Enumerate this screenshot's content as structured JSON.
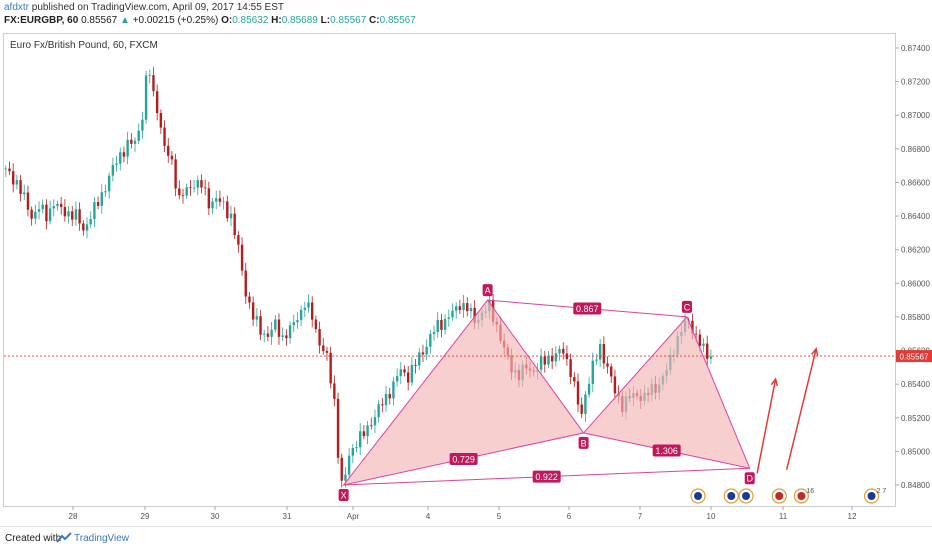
{
  "header": {
    "author": "afdxtr",
    "published": "published on TradingView.com, April 09, 2017 14:55 EST",
    "symbol": "FX:EURGBP, 60",
    "last": "0.85567",
    "change": "+0.00215 (+0.25%)",
    "o_label": "O:",
    "o_value": "0.85632",
    "h_label": "H:",
    "h_value": "0.85689",
    "l_label": "L:",
    "l_value": "0.85567",
    "c_label": "C:",
    "c_value": "0.85567"
  },
  "chart_title": "Euro Fx/British Pound, 60, FXCM",
  "footer": {
    "created": "Created with",
    "brand": "TradingView"
  },
  "colors": {
    "up": "#26a69a",
    "down": "#b71c1c",
    "pattern_fill": "#f4b6b6",
    "pattern_line": "#e040a0",
    "arrow": "#e53935",
    "price_line": "#e53935"
  },
  "chart_data": {
    "type": "candlestick",
    "title": "Euro Fx/British Pound, 60, FXCM",
    "current_price": 0.85567,
    "current_price_label": "0.85567",
    "y_ticks": [
      "0.87400",
      "0.87200",
      "0.87000",
      "0.86800",
      "0.86600",
      "0.86400",
      "0.86200",
      "0.86000",
      "0.85800",
      "0.85600",
      "0.85400",
      "0.85200",
      "0.85000",
      "0.84800"
    ],
    "ylim": [
      0.847,
      0.875
    ],
    "x_ticks": [
      "28",
      "29",
      "30",
      "31",
      "Apr",
      "4",
      "5",
      "6",
      "7",
      "10",
      "11",
      "12"
    ],
    "price_path": [
      [
        0,
        0.8668
      ],
      [
        2,
        0.8665
      ],
      [
        4,
        0.866
      ],
      [
        6,
        0.865
      ],
      [
        8,
        0.864
      ],
      [
        10,
        0.8645
      ],
      [
        12,
        0.864
      ],
      [
        14,
        0.8648
      ],
      [
        16,
        0.8643
      ],
      [
        18,
        0.8642
      ],
      [
        20,
        0.864
      ],
      [
        22,
        0.8632
      ],
      [
        24,
        0.864
      ],
      [
        26,
        0.8648
      ],
      [
        28,
        0.8658
      ],
      [
        30,
        0.8668
      ],
      [
        32,
        0.8677
      ],
      [
        34,
        0.8682
      ],
      [
        36,
        0.8684
      ],
      [
        38,
        0.87
      ],
      [
        39,
        0.872
      ],
      [
        40,
        0.8725
      ],
      [
        41,
        0.8712
      ],
      [
        42,
        0.8705
      ],
      [
        44,
        0.868
      ],
      [
        46,
        0.8672
      ],
      [
        48,
        0.865
      ],
      [
        50,
        0.8655
      ],
      [
        52,
        0.866
      ],
      [
        54,
        0.8658
      ],
      [
        56,
        0.8648
      ],
      [
        58,
        0.865
      ],
      [
        60,
        0.8646
      ],
      [
        62,
        0.864
      ],
      [
        64,
        0.862
      ],
      [
        66,
        0.8595
      ],
      [
        68,
        0.858
      ],
      [
        70,
        0.8572
      ],
      [
        72,
        0.8569
      ],
      [
        74,
        0.8575
      ],
      [
        76,
        0.8568
      ],
      [
        78,
        0.8572
      ],
      [
        80,
        0.858
      ],
      [
        82,
        0.8588
      ],
      [
        84,
        0.858
      ],
      [
        86,
        0.8565
      ],
      [
        88,
        0.8555
      ],
      [
        90,
        0.853
      ],
      [
        91,
        0.85
      ],
      [
        92,
        0.848
      ],
      [
        93,
        0.8485
      ],
      [
        94,
        0.8498
      ],
      [
        95,
        0.8502
      ],
      [
        96,
        0.8506
      ],
      [
        98,
        0.851
      ],
      [
        100,
        0.8518
      ],
      [
        102,
        0.8525
      ],
      [
        104,
        0.8532
      ],
      [
        106,
        0.854
      ],
      [
        108,
        0.8548
      ],
      [
        110,
        0.8545
      ],
      [
        112,
        0.8552
      ],
      [
        114,
        0.856
      ],
      [
        116,
        0.8568
      ],
      [
        118,
        0.8575
      ],
      [
        120,
        0.8578
      ],
      [
        122,
        0.8582
      ],
      [
        124,
        0.8588
      ],
      [
        126,
        0.8585
      ],
      [
        128,
        0.8578
      ],
      [
        130,
        0.8582
      ],
      [
        132,
        0.8586
      ],
      [
        134,
        0.8575
      ],
      [
        136,
        0.856
      ],
      [
        138,
        0.855
      ],
      [
        140,
        0.8545
      ],
      [
        142,
        0.855
      ],
      [
        144,
        0.8548
      ],
      [
        146,
        0.8552
      ],
      [
        148,
        0.8556
      ],
      [
        150,
        0.8557
      ],
      [
        152,
        0.856
      ],
      [
        154,
        0.8548
      ],
      [
        156,
        0.8528
      ],
      [
        157,
        0.8522
      ],
      [
        158,
        0.8535
      ],
      [
        160,
        0.855
      ],
      [
        162,
        0.8562
      ],
      [
        164,
        0.855
      ],
      [
        166,
        0.8535
      ],
      [
        168,
        0.8528
      ],
      [
        170,
        0.8532
      ],
      [
        172,
        0.8534
      ],
      [
        174,
        0.8532
      ],
      [
        176,
        0.8537
      ],
      [
        178,
        0.854
      ],
      [
        180,
        0.8548
      ],
      [
        182,
        0.8562
      ],
      [
        184,
        0.8572
      ],
      [
        186,
        0.8578
      ],
      [
        188,
        0.8568
      ],
      [
        190,
        0.856
      ],
      [
        191,
        0.8558
      ],
      [
        192,
        0.8557
      ]
    ],
    "pattern": {
      "points": [
        {
          "label": "X",
          "t": 92,
          "price": 0.848
        },
        {
          "label": "A",
          "t": 131,
          "price": 0.859
        },
        {
          "label": "B",
          "t": 157,
          "price": 0.8511
        },
        {
          "label": "C",
          "t": 185,
          "price": 0.858
        },
        {
          "label": "D",
          "t": 202,
          "price": 0.849
        }
      ],
      "ratios": [
        {
          "label": "0.867",
          "between": [
            "A",
            "C"
          ]
        },
        {
          "label": "0.729",
          "between": [
            "X",
            "B"
          ]
        },
        {
          "label": "1.306",
          "between": [
            "B",
            "D"
          ]
        },
        {
          "label": "0.922",
          "between": [
            "X",
            "D"
          ]
        }
      ]
    },
    "arrows": [
      {
        "from_t": 204,
        "from_price": 0.8487,
        "to_t": 209,
        "to_price": 0.8543
      },
      {
        "from_t": 212,
        "from_price": 0.8489,
        "to_t": 220,
        "to_price": 0.8561
      }
    ],
    "event_markers": [
      {
        "t": 188,
        "kind": "eu-flag"
      },
      {
        "t": 197,
        "kind": "eu-flag"
      },
      {
        "t": 201,
        "kind": "eu-flag"
      },
      {
        "t": 210,
        "kind": "uk-flag"
      },
      {
        "t": 216,
        "kind": "uk-flag",
        "label": "16"
      },
      {
        "t": 235,
        "kind": "multi-flag",
        "label": "2 7"
      }
    ]
  }
}
